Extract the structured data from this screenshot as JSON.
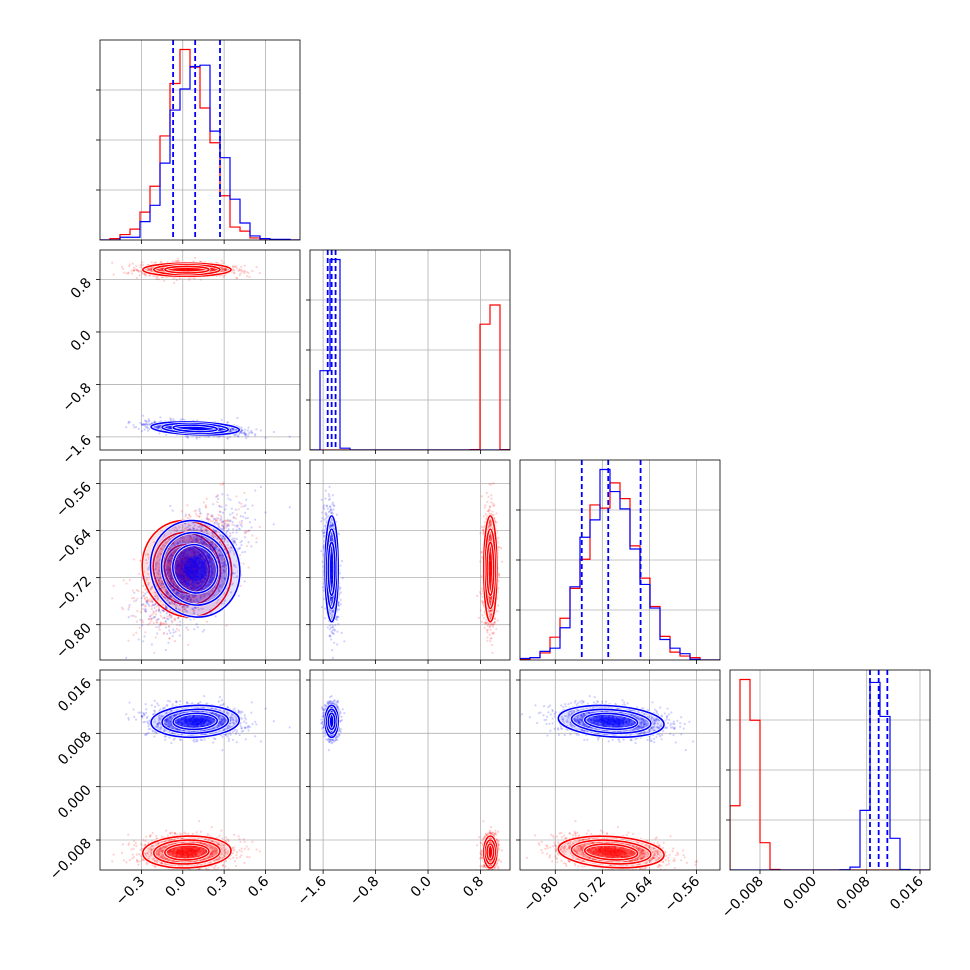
{
  "chart_data": {
    "type": "corner",
    "n_parameters": 4,
    "colors": {
      "red_samples": "#ff0000",
      "blue_samples": "#0000ff",
      "grid": "#b0b0b0"
    },
    "grid": true,
    "series": [
      {
        "color": "#ff0000",
        "means": [
          0.03,
          0.95,
          -0.705,
          -0.0098
        ],
        "sds": [
          0.16,
          0.05,
          0.045,
          0.0012
        ],
        "corr": {
          "0_2": 0.55,
          "2_3": -0.35,
          "0_3": 0.15
        }
      },
      {
        "color": "#0000ff",
        "means": [
          0.09,
          -1.47,
          -0.705,
          0.0098
        ],
        "sds": [
          0.16,
          0.05,
          0.045,
          0.0012
        ],
        "corr": {
          "0_2": 0.55,
          "2_3": -0.35,
          "0_3": 0.15,
          "0_1": -0.4
        }
      }
    ],
    "quantile_lines": [
      [
        -0.07,
        0.09,
        0.27
      ],
      [
        -1.53,
        -1.47,
        -1.41
      ],
      [
        -0.755,
        -0.71,
        -0.655
      ],
      [
        0.0085,
        0.0098,
        0.0111
      ]
    ],
    "ranges": [
      [
        -0.6,
        0.85
      ],
      [
        -1.8,
        1.25
      ],
      [
        -0.86,
        -0.52
      ],
      [
        -0.0125,
        0.0175
      ]
    ],
    "ticks": [
      [
        -0.3,
        0.0,
        0.3,
        0.6
      ],
      [
        -1.6,
        -0.8,
        0.0,
        0.8
      ],
      [
        -0.8,
        -0.72,
        -0.64,
        -0.56
      ],
      [
        -0.008,
        0.0,
        0.008,
        0.016
      ]
    ],
    "tick_labels": [
      [
        "−0.3",
        "0.0",
        "0.3",
        "0.6"
      ],
      [
        "−1.6",
        "−0.8",
        "0.0",
        "0.8"
      ],
      [
        "−0.80",
        "−0.72",
        "−0.64",
        "−0.56"
      ],
      [
        "−0.008",
        "0.000",
        "0.008",
        "0.016"
      ]
    ]
  }
}
